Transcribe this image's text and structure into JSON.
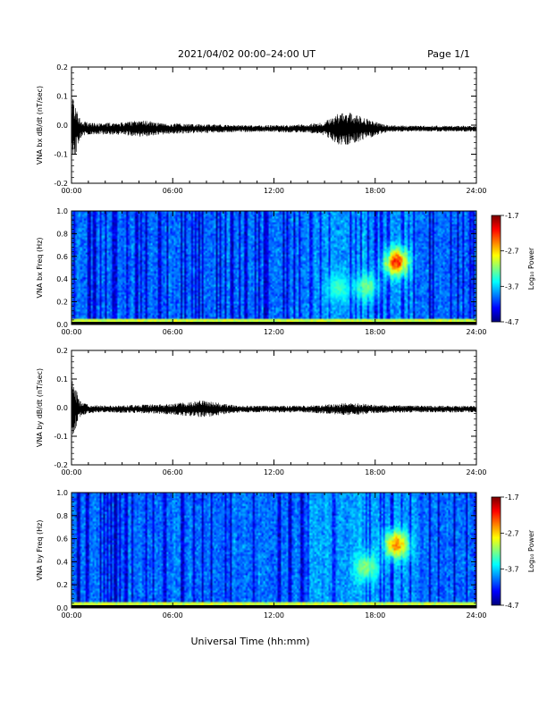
{
  "header": {
    "title": "2021/04/02  00:00–24:00 UT",
    "page": "Page 1/1"
  },
  "footer": {
    "xlabel": "Universal Time (hh:mm)"
  },
  "chart_data": [
    {
      "type": "line",
      "ylabel": "VNA bx dB/dt (nT/sec)",
      "xlim": [
        0,
        24
      ],
      "ylim": [
        -0.2,
        0.2
      ],
      "xticks": [
        "00:00",
        "06:00",
        "12:00",
        "18:00",
        "24:00"
      ],
      "yticks": [
        "-0.2",
        "-0.1",
        "0.0",
        "0.1",
        "0.2"
      ],
      "baseline": -0.012,
      "envelope": {
        "x": [
          0,
          0.2,
          0.5,
          1,
          2,
          3,
          4,
          4.5,
          5,
          6,
          8,
          10,
          12,
          14,
          15,
          15.5,
          16,
          16.5,
          17,
          17.5,
          18,
          18.5,
          19,
          20,
          22,
          24
        ],
        "amp": [
          0.12,
          0.1,
          0.035,
          0.02,
          0.02,
          0.022,
          0.028,
          0.03,
          0.022,
          0.018,
          0.015,
          0.012,
          0.012,
          0.015,
          0.025,
          0.045,
          0.06,
          0.055,
          0.045,
          0.035,
          0.025,
          0.015,
          0.012,
          0.01,
          0.01,
          0.01
        ]
      },
      "color": "#000000"
    },
    {
      "type": "heatmap",
      "ylabel": "VNA bx Freq (Hz)",
      "xlim": [
        0,
        24
      ],
      "ylim": [
        0.0,
        1.0
      ],
      "xticks": [
        "00:00",
        "06:00",
        "12:00",
        "18:00",
        "24:00"
      ],
      "yticks": [
        "0.0",
        "0.2",
        "0.4",
        "0.6",
        "0.8",
        "1.0"
      ],
      "colorbar": {
        "label": "Log₁₀ Power",
        "ticks": [
          "-1.7",
          "-2.7",
          "-3.7",
          "-4.7"
        ],
        "range": [
          -4.7,
          -1.7
        ]
      },
      "features": [
        {
          "description": "low-frequency band",
          "y_range": [
            0.0,
            0.05
          ],
          "power": -3.0
        },
        {
          "description": "emission",
          "time": 19.3,
          "freq": 0.55,
          "power": -1.9
        },
        {
          "description": "emission",
          "time": 17.5,
          "freq": 0.33,
          "power": -3.1
        },
        {
          "description": "emission",
          "time": 15.8,
          "freq": 0.32,
          "power": -3.3
        }
      ]
    },
    {
      "type": "line",
      "ylabel": "VNA by dB/dt (nT/sec)",
      "xlim": [
        0,
        24
      ],
      "ylim": [
        -0.2,
        0.2
      ],
      "xticks": [
        "00:00",
        "06:00",
        "12:00",
        "18:00",
        "24:00"
      ],
      "yticks": [
        "-0.2",
        "-0.1",
        "0.0",
        "0.1",
        "0.2"
      ],
      "baseline": -0.005,
      "envelope": {
        "x": [
          0,
          0.2,
          0.5,
          1,
          2,
          3,
          4,
          5,
          6,
          7,
          7.5,
          8,
          8.5,
          9,
          10,
          12,
          14,
          15,
          16,
          16.5,
          17,
          18,
          20,
          22,
          24
        ],
        "amp": [
          0.11,
          0.08,
          0.03,
          0.015,
          0.012,
          0.013,
          0.015,
          0.017,
          0.02,
          0.025,
          0.03,
          0.028,
          0.025,
          0.018,
          0.012,
          0.012,
          0.012,
          0.016,
          0.02,
          0.022,
          0.02,
          0.015,
          0.012,
          0.012,
          0.012
        ]
      },
      "color": "#000000"
    },
    {
      "type": "heatmap",
      "ylabel": "VNA by Freq (Hz)",
      "xlim": [
        0,
        24
      ],
      "ylim": [
        0.0,
        1.0
      ],
      "xticks": [
        "00:00",
        "06:00",
        "12:00",
        "18:00",
        "24:00"
      ],
      "yticks": [
        "0.0",
        "0.2",
        "0.4",
        "0.6",
        "0.8",
        "1.0"
      ],
      "colorbar": {
        "label": "Log₁₀ Power",
        "ticks": [
          "-1.7",
          "-2.7",
          "-3.7",
          "-4.7"
        ],
        "range": [
          -4.7,
          -1.7
        ]
      },
      "features": [
        {
          "description": "low-frequency band",
          "y_range": [
            0.0,
            0.05
          ],
          "power": -3.0
        },
        {
          "description": "emission",
          "time": 19.3,
          "freq": 0.55,
          "power": -2.2
        },
        {
          "description": "emission",
          "time": 17.5,
          "freq": 0.35,
          "power": -3.0
        }
      ]
    }
  ]
}
